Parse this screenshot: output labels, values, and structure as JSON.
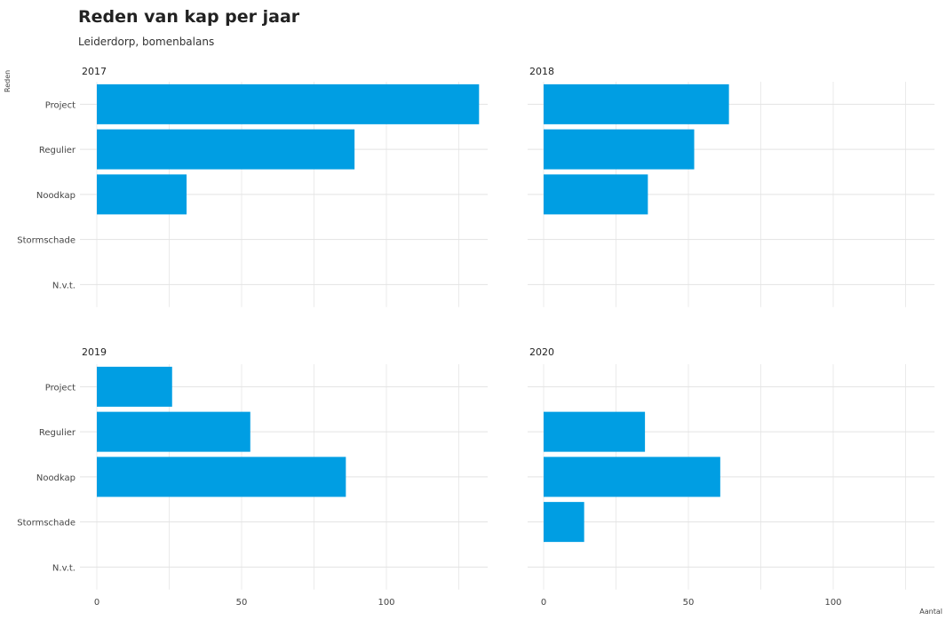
{
  "chart_data": {
    "type": "bar",
    "orientation": "horizontal",
    "title": "Reden van kap per jaar",
    "subtitle": "Leiderdorp, bomenbalans",
    "xlabel": "Aantal",
    "ylabel": "Reden",
    "categories": [
      "Project",
      "Regulier",
      "Noodkap",
      "Stormschade",
      "N.v.t."
    ],
    "xlim": [
      0,
      135
    ],
    "xticks": [
      0,
      50,
      100
    ],
    "xtick_labels": [
      "0",
      "50",
      "100"
    ],
    "grid": true,
    "bar_color": "#009ee3",
    "facets": [
      {
        "label": "2017",
        "values": [
          132,
          89,
          31,
          0,
          0
        ]
      },
      {
        "label": "2018",
        "values": [
          64,
          52,
          36,
          0,
          0
        ]
      },
      {
        "label": "2019",
        "values": [
          26,
          53,
          86,
          0,
          0
        ]
      },
      {
        "label": "2020",
        "values": [
          0,
          35,
          61,
          14,
          0
        ]
      }
    ]
  }
}
